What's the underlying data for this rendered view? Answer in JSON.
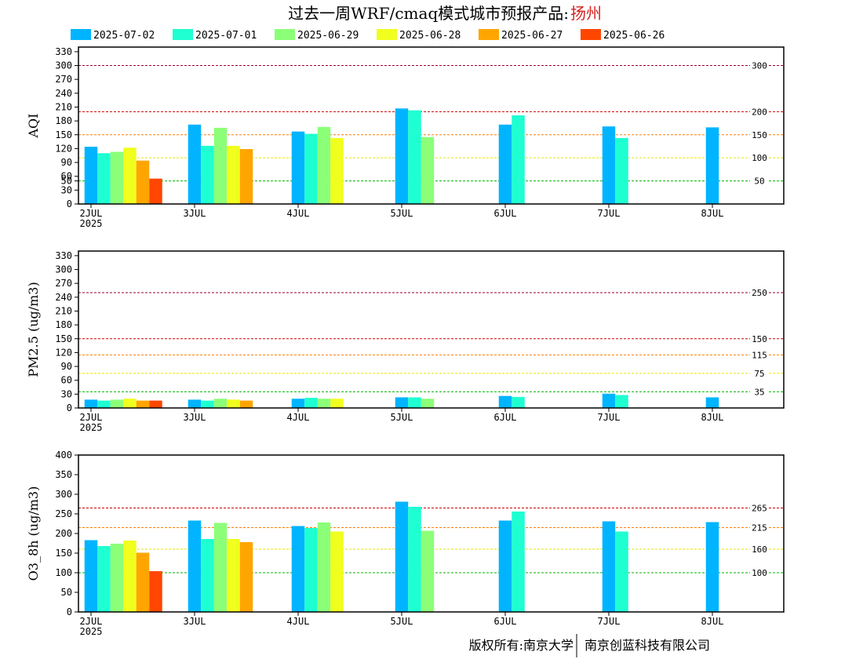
{
  "header": {
    "title": "过去一周WRF/cmaq模式城市预报产品:",
    "city": "扬州"
  },
  "legend": [
    {
      "label": "2025-07-02",
      "color": "#00b4ff"
    },
    {
      "label": "2025-07-01",
      "color": "#1effd2"
    },
    {
      "label": "2025-06-29",
      "color": "#8cff78"
    },
    {
      "label": "2025-06-28",
      "color": "#f0ff1e"
    },
    {
      "label": "2025-06-27",
      "color": "#ffa500"
    },
    {
      "label": "2025-06-26",
      "color": "#ff4600"
    }
  ],
  "footer": {
    "left": "版权所有:南京大学",
    "right": "南京创蓝科技有限公司"
  },
  "chart_data": [
    {
      "type": "bar",
      "ylabel": "AQI",
      "ylim": [
        0,
        340
      ],
      "yticks": [
        0,
        30,
        50,
        60,
        90,
        120,
        150,
        180,
        210,
        240,
        270,
        300,
        330
      ],
      "xticks": [
        "2JUL\n2025",
        "3JUL",
        "4JUL",
        "5JUL",
        "6JUL",
        "7JUL",
        "8JUL"
      ],
      "reference_lines": [
        {
          "value": 300,
          "label": "300",
          "color": "#990033"
        },
        {
          "value": 200,
          "label": "200",
          "color": "#cc0000"
        },
        {
          "value": 150,
          "label": "150",
          "color": "#ff7e00"
        },
        {
          "value": 100,
          "label": "100",
          "color": "#e6e600"
        },
        {
          "value": 50,
          "label": "50",
          "color": "#00b400"
        }
      ],
      "series": [
        {
          "name": "2025-07-02",
          "values": [
            124,
            172,
            157,
            207,
            172,
            168,
            166
          ]
        },
        {
          "name": "2025-07-01",
          "values": [
            110,
            126,
            152,
            203,
            192,
            143,
            null
          ]
        },
        {
          "name": "2025-06-29",
          "values": [
            113,
            165,
            167,
            145,
            null,
            null,
            null
          ]
        },
        {
          "name": "2025-06-28",
          "values": [
            122,
            126,
            143,
            null,
            null,
            null,
            null
          ]
        },
        {
          "name": "2025-06-27",
          "values": [
            94,
            119,
            null,
            null,
            null,
            null,
            null
          ]
        },
        {
          "name": "2025-06-26",
          "values": [
            55,
            null,
            null,
            null,
            null,
            null,
            null
          ]
        }
      ]
    },
    {
      "type": "bar",
      "ylabel": "PM2.5 (ug/m3)",
      "ylim": [
        0,
        340
      ],
      "yticks": [
        0,
        30,
        60,
        90,
        120,
        150,
        180,
        210,
        240,
        270,
        300,
        330
      ],
      "xticks": [
        "2JUL\n2025",
        "3JUL",
        "4JUL",
        "5JUL",
        "6JUL",
        "7JUL",
        "8JUL"
      ],
      "reference_lines": [
        {
          "value": 250,
          "label": "250",
          "color": "#990033"
        },
        {
          "value": 150,
          "label": "150",
          "color": "#cc0000"
        },
        {
          "value": 115,
          "label": "115",
          "color": "#ff7e00"
        },
        {
          "value": 75,
          "label": "75",
          "color": "#e6e600"
        },
        {
          "value": 35,
          "label": "35",
          "color": "#00b400"
        }
      ],
      "series": [
        {
          "name": "2025-07-02",
          "values": [
            18,
            18,
            20,
            23,
            26,
            31,
            23
          ]
        },
        {
          "name": "2025-07-01",
          "values": [
            16,
            16,
            22,
            23,
            24,
            28,
            null
          ]
        },
        {
          "name": "2025-06-29",
          "values": [
            18,
            20,
            20,
            20,
            null,
            null,
            null
          ]
        },
        {
          "name": "2025-06-28",
          "values": [
            20,
            18,
            20,
            null,
            null,
            null,
            null
          ]
        },
        {
          "name": "2025-06-27",
          "values": [
            16,
            16,
            null,
            null,
            null,
            null,
            null
          ]
        },
        {
          "name": "2025-06-26",
          "values": [
            16,
            null,
            null,
            null,
            null,
            null,
            null
          ]
        }
      ]
    },
    {
      "type": "bar",
      "ylabel": "O3_8h (ug/m3)",
      "ylim": [
        0,
        400
      ],
      "yticks": [
        0,
        50,
        100,
        150,
        200,
        250,
        300,
        350,
        400
      ],
      "xticks": [
        "2JUL\n2025",
        "3JUL",
        "4JUL",
        "5JUL",
        "6JUL",
        "7JUL",
        "8JUL"
      ],
      "reference_lines": [
        {
          "value": 265,
          "label": "265",
          "color": "#cc0000"
        },
        {
          "value": 215,
          "label": "215",
          "color": "#ff7e00"
        },
        {
          "value": 160,
          "label": "160",
          "color": "#e6e600"
        },
        {
          "value": 100,
          "label": "100",
          "color": "#00b400"
        }
      ],
      "series": [
        {
          "name": "2025-07-02",
          "values": [
            183,
            233,
            219,
            281,
            233,
            231,
            229
          ]
        },
        {
          "name": "2025-07-01",
          "values": [
            168,
            186,
            214,
            268,
            256,
            205,
            null
          ]
        },
        {
          "name": "2025-06-29",
          "values": [
            174,
            227,
            228,
            207,
            null,
            null,
            null
          ]
        },
        {
          "name": "2025-06-28",
          "values": [
            182,
            186,
            205,
            null,
            null,
            null,
            null
          ]
        },
        {
          "name": "2025-06-27",
          "values": [
            151,
            178,
            null,
            null,
            null,
            null,
            null
          ]
        },
        {
          "name": "2025-06-26",
          "values": [
            104,
            null,
            null,
            null,
            null,
            null,
            null
          ]
        }
      ]
    }
  ]
}
